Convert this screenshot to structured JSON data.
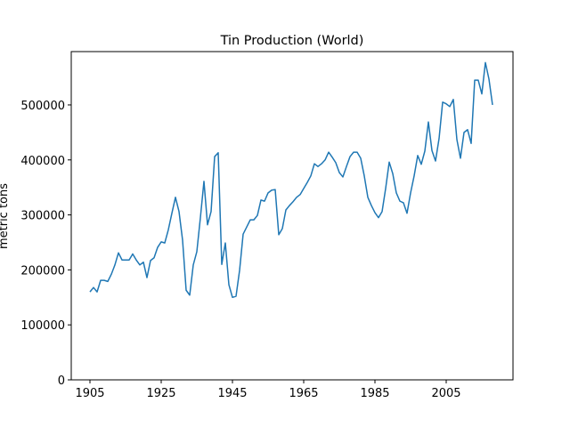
{
  "chart_data": {
    "type": "line",
    "title": "Tin Production (World)",
    "y_label": "metric tons",
    "x": [
      1905,
      1906,
      1907,
      1908,
      1909,
      1910,
      1911,
      1912,
      1913,
      1914,
      1915,
      1916,
      1917,
      1918,
      1919,
      1920,
      1921,
      1922,
      1923,
      1924,
      1925,
      1926,
      1927,
      1928,
      1929,
      1930,
      1931,
      1932,
      1933,
      1934,
      1935,
      1936,
      1937,
      1938,
      1939,
      1940,
      1941,
      1942,
      1943,
      1944,
      1945,
      1946,
      1947,
      1948,
      1949,
      1950,
      1951,
      1952,
      1953,
      1954,
      1955,
      1956,
      1957,
      1958,
      1959,
      1960,
      1961,
      1962,
      1963,
      1964,
      1965,
      1966,
      1967,
      1968,
      1969,
      1970,
      1971,
      1972,
      1973,
      1974,
      1975,
      1976,
      1977,
      1978,
      1979,
      1980,
      1981,
      1982,
      1983,
      1984,
      1985,
      1986,
      1987,
      1988,
      1989,
      1990,
      1991,
      1992,
      1993,
      1994,
      1995,
      1996,
      1997,
      1998,
      1999,
      2000,
      2001,
      2002,
      2003,
      2004,
      2005,
      2006,
      2007,
      2008,
      2009,
      2010,
      2011,
      2012,
      2013,
      2014,
      2015,
      2016,
      2017,
      2018
    ],
    "series": [
      {
        "name": "World",
        "color": "#1f77b4",
        "values": [
          160000,
          168000,
          160000,
          181000,
          181000,
          179000,
          192000,
          209000,
          231000,
          218000,
          218000,
          218000,
          229000,
          218000,
          209000,
          214000,
          186000,
          217000,
          222000,
          241000,
          251000,
          249000,
          273000,
          303000,
          332000,
          306000,
          254000,
          163000,
          154000,
          209000,
          233000,
          295000,
          361000,
          282000,
          306000,
          406000,
          413000,
          210000,
          249000,
          173000,
          150000,
          152000,
          199000,
          265000,
          278000,
          291000,
          291000,
          299000,
          327000,
          325000,
          340000,
          345000,
          346000,
          264000,
          275000,
          309000,
          317000,
          324000,
          332000,
          337000,
          348000,
          359000,
          371000,
          393000,
          388000,
          393000,
          400000,
          414000,
          405000,
          395000,
          377000,
          369000,
          388000,
          406000,
          414000,
          414000,
          403000,
          371000,
          332000,
          317000,
          304000,
          295000,
          306000,
          348000,
          396000,
          375000,
          340000,
          325000,
          322000,
          303000,
          340000,
          371000,
          408000,
          392000,
          416000,
          469000,
          417000,
          398000,
          439000,
          505000,
          502000,
          497000,
          510000,
          437000,
          403000,
          450000,
          455000,
          430000,
          545000,
          545000,
          520000,
          577000,
          547000,
          500000
        ]
      }
    ],
    "xlim": [
      1899.75,
      2023.75
    ],
    "ylim": [
      0,
      597000
    ],
    "xticks": [
      1905,
      1925,
      1945,
      1965,
      1985,
      2005
    ],
    "yticks": [
      0,
      100000,
      200000,
      300000,
      400000,
      500000
    ]
  }
}
